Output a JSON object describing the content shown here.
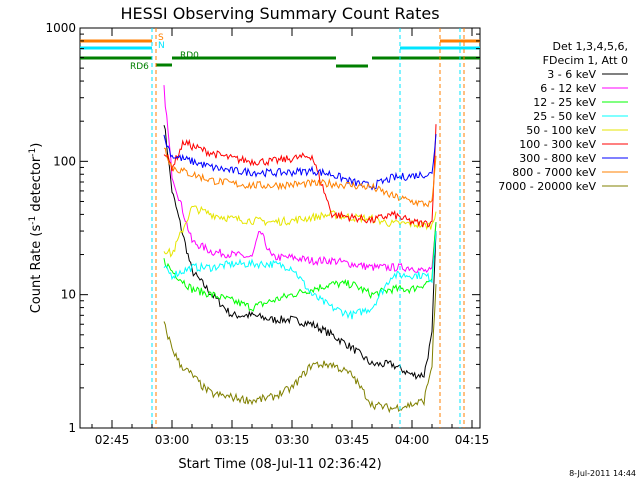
{
  "chart_data": {
    "type": "line",
    "title": "HESSI Observing Summary Count Rates",
    "xlabel": "Start Time (08-Jul-11 02:36:42)",
    "ylabel": "Count Rate (s⁻¹ detector⁻¹)",
    "ylabel_main": "Count Rate (s",
    "ylabel_mid": " detector",
    "ylabel_end": ")",
    "ylabel_sup": "-1",
    "y_scale": "log",
    "ylim": [
      1,
      1000
    ],
    "xlim": [
      "02:37",
      "04:17"
    ],
    "x_ticks": [
      "02:45",
      "03:00",
      "03:15",
      "03:30",
      "03:45",
      "04:00",
      "04:15"
    ],
    "y_ticks": [
      "1",
      "10",
      "100",
      "1000"
    ],
    "grid": false,
    "legend_position": "right",
    "legend_header": [
      "Det 1,3,4,5,6,",
      "FDecim 1, Att 0"
    ],
    "timestamp": "8-Jul-2011 14:44",
    "markers": [
      {
        "label": "S",
        "color": "#ff7f00"
      },
      {
        "label": "N",
        "color": "#00e5ff"
      },
      {
        "label": "RD0",
        "color": "#007f00"
      },
      {
        "label": "RD6",
        "color": "#007f00"
      }
    ],
    "series": [
      {
        "name": "3 - 6 keV",
        "color": "#000000",
        "x": [
          "02:58",
          "03:00",
          "03:05",
          "03:10",
          "03:15",
          "03:20",
          "03:25",
          "03:30",
          "03:35",
          "03:40",
          "03:45",
          "03:50",
          "03:55",
          "04:00",
          "04:03",
          "04:05",
          "04:06"
        ],
        "y": [
          200,
          60,
          15,
          10,
          7,
          7,
          6.5,
          6.5,
          6,
          5,
          4,
          3,
          3,
          2.5,
          2.5,
          5,
          30
        ]
      },
      {
        "name": "6 - 12 keV",
        "color": "#ff00ff",
        "x": [
          "02:58",
          "03:00",
          "03:05",
          "03:10",
          "03:15",
          "03:20",
          "03:22",
          "03:25",
          "03:30",
          "03:35",
          "03:40",
          "03:45",
          "03:50",
          "03:55",
          "04:00",
          "04:03",
          "04:05",
          "04:06"
        ],
        "y": [
          350,
          80,
          25,
          21,
          20,
          19,
          30,
          19,
          19,
          18,
          18,
          17,
          16,
          16,
          16,
          15,
          15,
          35
        ]
      },
      {
        "name": "12 - 25 keV",
        "color": "#00ff00",
        "x": [
          "02:58",
          "03:00",
          "03:05",
          "03:10",
          "03:15",
          "03:20",
          "03:25",
          "03:30",
          "03:35",
          "03:40",
          "03:45",
          "03:50",
          "03:55",
          "04:00",
          "04:03",
          "04:05",
          "04:06"
        ],
        "y": [
          18,
          15,
          11,
          10,
          9,
          8,
          9,
          10,
          11,
          12,
          12,
          10,
          11,
          11,
          12,
          13,
          35
        ]
      },
      {
        "name": "25 - 50 keV",
        "color": "#00ffff",
        "x": [
          "02:58",
          "03:00",
          "03:05",
          "03:10",
          "03:15",
          "03:20",
          "03:25",
          "03:30",
          "03:35",
          "03:40",
          "03:45",
          "03:50",
          "03:55",
          "04:00",
          "04:03",
          "04:05",
          "04:06"
        ],
        "y": [
          16,
          14,
          16,
          16,
          17,
          17,
          17,
          16,
          10,
          8,
          7,
          8,
          14,
          14,
          14,
          13,
          30
        ]
      },
      {
        "name": "50 - 100 keV",
        "color": "#e6e600",
        "x": [
          "02:58",
          "03:00",
          "03:05",
          "03:10",
          "03:15",
          "03:20",
          "03:25",
          "03:30",
          "03:35",
          "03:40",
          "03:45",
          "03:50",
          "03:55",
          "04:00",
          "04:03",
          "04:05",
          "04:06"
        ],
        "y": [
          22,
          20,
          45,
          40,
          37,
          36,
          35,
          36,
          38,
          40,
          38,
          37,
          34,
          34,
          33,
          33,
          42
        ]
      },
      {
        "name": "100 - 300 keV",
        "color": "#ff0000",
        "x": [
          "02:58",
          "03:00",
          "03:03",
          "03:05",
          "03:10",
          "03:15",
          "03:20",
          "03:25",
          "03:30",
          "03:35",
          "03:40",
          "03:45",
          "03:50",
          "03:55",
          "04:00",
          "04:03",
          "04:05",
          "04:06"
        ],
        "y": [
          120,
          90,
          140,
          130,
          115,
          105,
          100,
          100,
          105,
          110,
          40,
          38,
          36,
          40,
          35,
          34,
          35,
          190
        ]
      },
      {
        "name": "300 - 800 keV",
        "color": "#0000ff",
        "x": [
          "02:58",
          "03:00",
          "03:05",
          "03:10",
          "03:15",
          "03:20",
          "03:25",
          "03:30",
          "03:35",
          "03:40",
          "03:45",
          "03:50",
          "03:55",
          "04:00",
          "04:03",
          "04:05",
          "04:06"
        ],
        "y": [
          150,
          110,
          100,
          90,
          85,
          83,
          82,
          83,
          85,
          80,
          70,
          65,
          75,
          78,
          80,
          80,
          160
        ]
      },
      {
        "name": "800 - 7000 keV",
        "color": "#ff8000",
        "x": [
          "02:58",
          "03:00",
          "03:05",
          "03:10",
          "03:15",
          "03:20",
          "03:25",
          "03:30",
          "03:35",
          "03:40",
          "03:45",
          "03:50",
          "03:55",
          "04:00",
          "04:03",
          "04:05",
          "04:06"
        ],
        "y": [
          130,
          90,
          80,
          72,
          68,
          66,
          66,
          67,
          68,
          68,
          66,
          64,
          55,
          50,
          48,
          48,
          110
        ]
      },
      {
        "name": "7000 - 20000 keV",
        "color": "#808000",
        "x": [
          "02:58",
          "03:00",
          "03:02",
          "03:05",
          "03:08",
          "03:10",
          "03:15",
          "03:20",
          "03:25",
          "03:30",
          "03:35",
          "03:40",
          "03:45",
          "03:50",
          "03:55",
          "04:00",
          "04:03",
          "04:05",
          "04:06"
        ],
        "y": [
          6,
          4,
          3,
          2.5,
          2,
          1.8,
          1.7,
          1.6,
          1.7,
          2,
          3,
          3,
          2.5,
          1.5,
          1.4,
          1.5,
          1.6,
          3,
          12
        ]
      }
    ]
  }
}
